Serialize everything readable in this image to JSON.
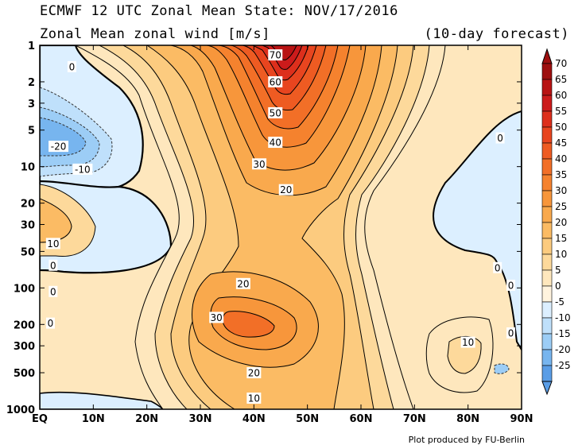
{
  "header": {
    "line1": "ECMWF 12 UTC Zonal Mean State: NOV/17/2016",
    "line2": "Zonal Mean zonal wind [m/s]",
    "forecast": "(10-day forecast)"
  },
  "footer": {
    "credit": "Plot produced by FU-Berlin"
  },
  "chart_data": {
    "type": "heatmap",
    "title": "Zonal Mean zonal wind [m/s]",
    "x_ticks": [
      "EQ",
      "10N",
      "20N",
      "30N",
      "40N",
      "50N",
      "60N",
      "70N",
      "80N",
      "90N"
    ],
    "x_values": [
      0,
      10,
      20,
      30,
      40,
      50,
      60,
      70,
      80,
      90
    ],
    "y_ticks": [
      "1",
      "2",
      "3",
      "5",
      "10",
      "20",
      "30",
      "50",
      "100",
      "200",
      "300",
      "500",
      "1000"
    ],
    "y_values": [
      1,
      2,
      3,
      5,
      10,
      20,
      30,
      50,
      100,
      200,
      300,
      500,
      1000
    ],
    "y_scale": "log",
    "y_inverted": true,
    "xlim": [
      0,
      90
    ],
    "ylim": [
      1000,
      1
    ],
    "colorbar": {
      "levels": [
        "70",
        "65",
        "60",
        "55",
        "50",
        "45",
        "40",
        "35",
        "30",
        "25",
        "20",
        "15",
        "10",
        "5",
        "0",
        "-5",
        "-10",
        "-15",
        "-20",
        "-25"
      ],
      "colors": [
        "#9e0f0f",
        "#b81313",
        "#cc1b1b",
        "#dd2f1c",
        "#e8451f",
        "#ee5b22",
        "#f26f27",
        "#f5822e",
        "#f7963b",
        "#f9a94d",
        "#fbbb64",
        "#fccb7f",
        "#fdd99b",
        "#fee7bd",
        "#fff3de",
        "#dcefff",
        "#bfe0fb",
        "#9ccdf6",
        "#77b5ef",
        "#5a9de6"
      ]
    },
    "contour_labels": [
      {
        "text": "70",
        "lat": 44,
        "p": 1.2
      },
      {
        "text": "60",
        "lat": 44,
        "p": 2.0
      },
      {
        "text": "50",
        "lat": 44,
        "p": 3.6
      },
      {
        "text": "40",
        "lat": 44,
        "p": 6.3
      },
      {
        "text": "30",
        "lat": 41,
        "p": 9.5
      },
      {
        "text": "20",
        "lat": 46,
        "p": 15.5
      },
      {
        "text": "0",
        "lat": 6,
        "p": 1.5
      },
      {
        "text": "-20",
        "lat": 3.5,
        "p": 6.8
      },
      {
        "text": "-10",
        "lat": 8,
        "p": 10.5
      },
      {
        "text": "10",
        "lat": 2.5,
        "p": 43
      },
      {
        "text": "0",
        "lat": 2.5,
        "p": 65
      },
      {
        "text": "0",
        "lat": 2.5,
        "p": 107
      },
      {
        "text": "0",
        "lat": 2,
        "p": 195
      },
      {
        "text": "20",
        "lat": 38,
        "p": 92
      },
      {
        "text": "30",
        "lat": 33,
        "p": 175
      },
      {
        "text": "20",
        "lat": 40,
        "p": 500
      },
      {
        "text": "10",
        "lat": 40,
        "p": 810
      },
      {
        "text": "0",
        "lat": 86,
        "p": 5.8
      },
      {
        "text": "0",
        "lat": 85.5,
        "p": 68
      },
      {
        "text": "0",
        "lat": 88,
        "p": 95
      },
      {
        "text": "10",
        "lat": 80,
        "p": 280
      },
      {
        "text": "0",
        "lat": 88,
        "p": 235
      }
    ]
  }
}
